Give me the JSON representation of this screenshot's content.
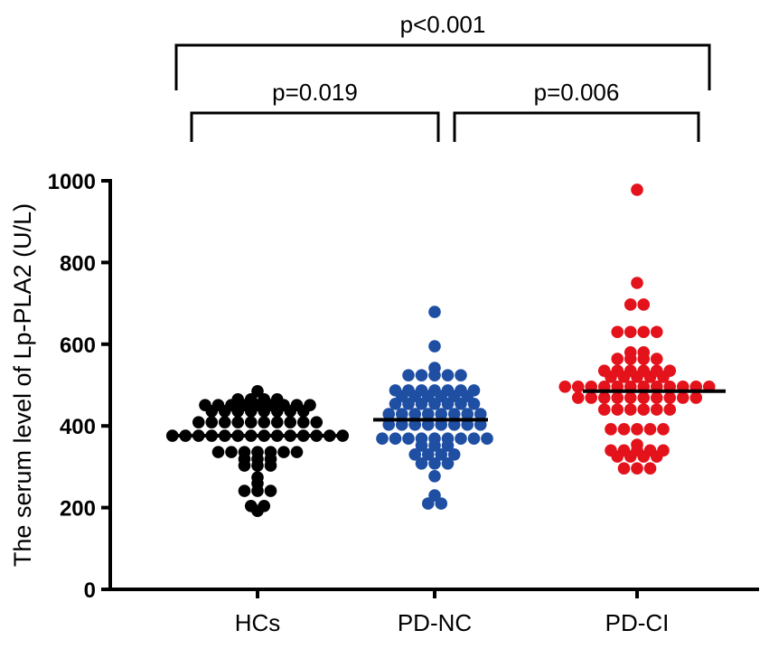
{
  "chart_data": {
    "type": "scatter",
    "subtype": "dot-plot with mean line",
    "ylabel": "The serum level of Lp-PLA2 (U/L)",
    "xlabel": "",
    "ylim": [
      0,
      1000
    ],
    "yticks": [
      "0",
      "200",
      "400",
      "600",
      "800",
      "1000"
    ],
    "categories": [
      "HCs",
      "PD-NC",
      "PD-CI"
    ],
    "grid": false,
    "series": [
      {
        "category": "HCs",
        "color": "#000000",
        "mean": 376,
        "values": [
          485,
          465,
          465,
          465,
          465,
          451,
          451,
          451,
          451,
          451,
          451,
          451,
          451,
          451,
          436,
          436,
          436,
          436,
          436,
          436,
          436,
          436,
          409,
          409,
          409,
          409,
          409,
          409,
          409,
          409,
          409,
          409,
          376,
          376,
          376,
          376,
          376,
          376,
          376,
          376,
          376,
          376,
          376,
          376,
          376,
          376,
          336,
          336,
          336,
          336,
          336,
          336,
          336,
          319,
          319,
          319,
          303,
          303,
          303,
          274,
          259,
          241,
          241,
          241,
          204,
          204,
          192
        ]
      },
      {
        "category": "PD-NC",
        "color": "#1f4fa3",
        "mean": 415,
        "values": [
          679,
          595,
          542,
          524,
          524,
          524,
          524,
          524,
          487,
          487,
          487,
          487,
          487,
          487,
          487,
          473,
          473,
          473,
          473,
          473,
          473,
          454,
          454,
          454,
          454,
          454,
          454,
          454,
          429,
          429,
          429,
          429,
          429,
          429,
          429,
          429,
          403,
          403,
          403,
          403,
          403,
          403,
          403,
          403,
          369,
          369,
          369,
          369,
          369,
          369,
          369,
          369,
          369,
          352,
          352,
          352,
          330,
          330,
          330,
          330,
          308,
          308,
          308,
          277,
          230,
          210,
          210
        ]
      },
      {
        "category": "PD-CI",
        "color": "#e3121b",
        "mean": 485,
        "values": [
          978,
          750,
          697,
          697,
          630,
          630,
          630,
          630,
          580,
          580,
          564,
          564,
          564,
          564,
          535,
          535,
          535,
          535,
          535,
          535,
          520,
          520,
          520,
          520,
          520,
          496,
          496,
          496,
          496,
          496,
          496,
          496,
          496,
          496,
          496,
          496,
          496,
          469,
          469,
          469,
          469,
          469,
          469,
          469,
          469,
          469,
          469,
          440,
          440,
          440,
          440,
          440,
          440,
          392,
          392,
          392,
          392,
          392,
          354,
          340,
          340,
          340,
          340,
          340,
          325,
          325,
          325,
          325,
          296,
          296,
          296
        ]
      }
    ],
    "annotations": [
      {
        "label": "p<0.001",
        "from": "HCs",
        "to": "PD-CI"
      },
      {
        "label": "p=0.019",
        "from": "HCs",
        "to": "PD-NC"
      },
      {
        "label": "p=0.006",
        "from": "PD-NC",
        "to": "PD-CI"
      }
    ]
  }
}
